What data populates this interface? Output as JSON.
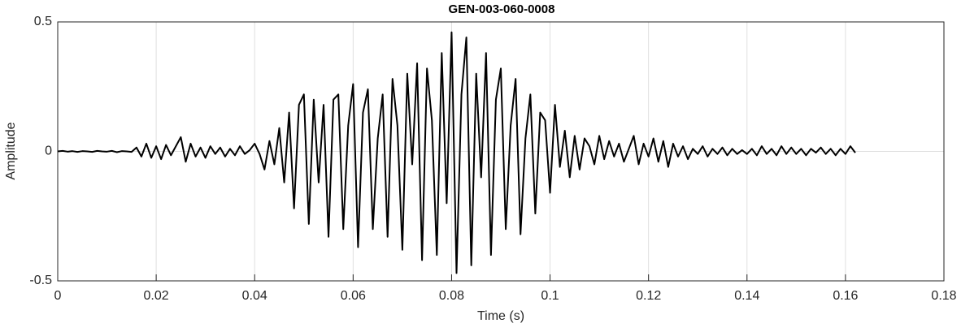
{
  "chart_data": {
    "type": "line",
    "title": "GEN-003-060-0008",
    "x_label": "Time (s)",
    "y_label": "Amplitude",
    "xlim": [
      0,
      0.18
    ],
    "xticks": [
      0,
      0.02,
      0.04,
      0.06,
      0.08,
      0.1,
      0.12,
      0.14,
      0.16,
      0.18
    ],
    "ylim": [
      -0.5,
      0.5
    ],
    "yticks": [
      -0.5,
      0,
      0.5
    ],
    "grid": true,
    "color": "#000000",
    "x": [
      0,
      0.001,
      0.002,
      0.003,
      0.004,
      0.005,
      0.006,
      0.007,
      0.008,
      0.009,
      0.01,
      0.011,
      0.012,
      0.013,
      0.014,
      0.015,
      0.016,
      0.017,
      0.018,
      0.019,
      0.02,
      0.021,
      0.022,
      0.023,
      0.024,
      0.025,
      0.026,
      0.027,
      0.028,
      0.029,
      0.03,
      0.031,
      0.032,
      0.033,
      0.034,
      0.035,
      0.036,
      0.037,
      0.038,
      0.039,
      0.04,
      0.041,
      0.042,
      0.043,
      0.044,
      0.045,
      0.046,
      0.047,
      0.048,
      0.049,
      0.05,
      0.051,
      0.052,
      0.053,
      0.054,
      0.055,
      0.056,
      0.057,
      0.058,
      0.059,
      0.06,
      0.061,
      0.062,
      0.063,
      0.064,
      0.065,
      0.066,
      0.067,
      0.068,
      0.069,
      0.07,
      0.071,
      0.072,
      0.073,
      0.074,
      0.075,
      0.076,
      0.077,
      0.078,
      0.079,
      0.08,
      0.081,
      0.082,
      0.083,
      0.084,
      0.085,
      0.086,
      0.087,
      0.088,
      0.089,
      0.09,
      0.091,
      0.092,
      0.093,
      0.094,
      0.095,
      0.096,
      0.097,
      0.098,
      0.099,
      0.1,
      0.101,
      0.102,
      0.103,
      0.104,
      0.105,
      0.106,
      0.107,
      0.108,
      0.109,
      0.11,
      0.111,
      0.112,
      0.113,
      0.114,
      0.115,
      0.116,
      0.117,
      0.118,
      0.119,
      0.12,
      0.121,
      0.122,
      0.123,
      0.124,
      0.125,
      0.126,
      0.127,
      0.128,
      0.129,
      0.13,
      0.131,
      0.132,
      0.133,
      0.134,
      0.135,
      0.136,
      0.137,
      0.138,
      0.139,
      0.14,
      0.141,
      0.142,
      0.143,
      0.144,
      0.145,
      0.146,
      0.147,
      0.148,
      0.149,
      0.15,
      0.151,
      0.152,
      0.153,
      0.154,
      0.155,
      0.156,
      0.157,
      0.158,
      0.159,
      0.16,
      0.161,
      0.162
    ],
    "values": [
      0,
      0.002,
      -0.001,
      0.001,
      -0.002,
      0.001,
      0,
      -0.002,
      0.002,
      0,
      -0.001,
      0.002,
      -0.003,
      0.001,
      0,
      -0.002,
      0.015,
      -0.02,
      0.03,
      -0.025,
      0.02,
      -0.03,
      0.025,
      -0.015,
      0.02,
      0.055,
      -0.04,
      0.03,
      -0.02,
      0.015,
      -0.025,
      0.02,
      -0.01,
      0.015,
      -0.02,
      0.01,
      -0.015,
      0.02,
      -0.01,
      0.005,
      0.03,
      -0.01,
      -0.07,
      0.04,
      -0.05,
      0.09,
      -0.12,
      0.15,
      -0.22,
      0.18,
      0.22,
      -0.28,
      0.2,
      -0.12,
      0.18,
      -0.33,
      0.2,
      0.22,
      -0.3,
      0.1,
      0.26,
      -0.37,
      0.15,
      0.24,
      -0.3,
      0.05,
      0.22,
      -0.33,
      0.28,
      0.1,
      -0.38,
      0.3,
      -0.05,
      0.34,
      -0.42,
      0.32,
      0.12,
      -0.4,
      0.38,
      -0.2,
      0.46,
      -0.47,
      0.22,
      0.44,
      -0.44,
      0.3,
      -0.1,
      0.38,
      -0.4,
      0.2,
      0.32,
      -0.3,
      0.1,
      0.28,
      -0.32,
      0.05,
      0.22,
      -0.24,
      0.15,
      0.12,
      -0.16,
      0.18,
      -0.06,
      0.08,
      -0.1,
      0.06,
      -0.07,
      0.05,
      0.02,
      -0.05,
      0.06,
      -0.03,
      0.04,
      -0.02,
      0.03,
      -0.04,
      0.01,
      0.06,
      -0.05,
      0.03,
      -0.02,
      0.05,
      -0.04,
      0.04,
      -0.06,
      0.03,
      -0.02,
      0.02,
      -0.03,
      0.01,
      -0.01,
      0.02,
      -0.02,
      0.01,
      -0.01,
      0.015,
      -0.015,
      0.01,
      -0.01,
      0.005,
      -0.01,
      0.01,
      -0.015,
      0.02,
      -0.01,
      0.01,
      -0.015,
      0.02,
      -0.01,
      0.015,
      -0.01,
      0.01,
      -0.015,
      0.01,
      -0.005,
      0.015,
      -0.01,
      0.01,
      -0.015,
      0.01,
      -0.01,
      0.02,
      -0.005
    ]
  }
}
